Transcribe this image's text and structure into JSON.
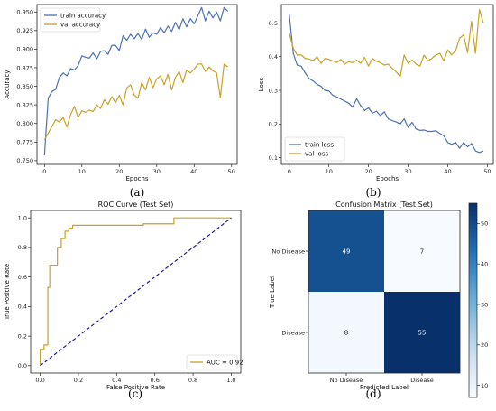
{
  "chart_data": [
    {
      "id": "a",
      "type": "line",
      "caption": "(a)",
      "title": "",
      "xlabel": "Epochs",
      "ylabel": "Accuracy",
      "xlim": [
        -2,
        51.5
      ],
      "ylim": [
        0.745,
        0.96
      ],
      "xticks": [
        0,
        10,
        20,
        30,
        40,
        50
      ],
      "yticks": [
        0.75,
        0.775,
        0.8,
        0.825,
        0.85,
        0.875,
        0.9,
        0.925,
        0.95
      ],
      "ytick_labels": [
        "0.750",
        "0.775",
        "0.800",
        "0.825",
        "0.850",
        "0.875",
        "0.900",
        "0.925",
        "0.950"
      ],
      "legend_position": "top-left",
      "series": [
        {
          "name": "train accuracy",
          "color": "#4c72b0",
          "values": [
            0.757,
            0.834,
            0.843,
            0.846,
            0.862,
            0.868,
            0.864,
            0.874,
            0.872,
            0.878,
            0.891,
            0.889,
            0.888,
            0.895,
            0.887,
            0.897,
            0.898,
            0.893,
            0.905,
            0.905,
            0.898,
            0.918,
            0.912,
            0.92,
            0.914,
            0.921,
            0.913,
            0.927,
            0.916,
            0.922,
            0.92,
            0.929,
            0.922,
            0.931,
            0.924,
            0.936,
            0.926,
            0.941,
            0.93,
            0.941,
            0.934,
            0.945,
            0.956,
            0.938,
            0.951,
            0.942,
            0.95,
            0.938,
            0.956,
            0.951
          ]
        },
        {
          "name": "val accuracy",
          "color": "#c9a227",
          "values": [
            0.778,
            0.787,
            0.796,
            0.805,
            0.802,
            0.808,
            0.795,
            0.812,
            0.823,
            0.808,
            0.817,
            0.815,
            0.818,
            0.816,
            0.825,
            0.82,
            0.832,
            0.826,
            0.836,
            0.828,
            0.838,
            0.825,
            0.848,
            0.852,
            0.838,
            0.834,
            0.855,
            0.845,
            0.862,
            0.848,
            0.86,
            0.864,
            0.852,
            0.866,
            0.845,
            0.862,
            0.87,
            0.855,
            0.872,
            0.868,
            0.873,
            0.88,
            0.88,
            0.87,
            0.876,
            0.871,
            0.868,
            0.835,
            0.88,
            0.876
          ]
        }
      ]
    },
    {
      "id": "b",
      "type": "line",
      "caption": "(b)",
      "title": "",
      "xlabel": "Epochs",
      "ylabel": "Loss",
      "xlim": [
        -2,
        51.5
      ],
      "ylim": [
        0.08,
        0.555
      ],
      "xticks": [
        0,
        10,
        20,
        30,
        40,
        50
      ],
      "yticks": [
        0.1,
        0.2,
        0.3,
        0.4,
        0.5
      ],
      "ytick_labels": [
        "0.1",
        "0.2",
        "0.3",
        "0.4",
        "0.5"
      ],
      "legend_position": "bottom-left",
      "series": [
        {
          "name": "train loss",
          "color": "#4c72b0",
          "values": [
            0.525,
            0.41,
            0.375,
            0.372,
            0.352,
            0.335,
            0.328,
            0.318,
            0.312,
            0.3,
            0.298,
            0.285,
            0.28,
            0.274,
            0.268,
            0.262,
            0.25,
            0.275,
            0.255,
            0.24,
            0.248,
            0.232,
            0.238,
            0.225,
            0.236,
            0.215,
            0.21,
            0.206,
            0.2,
            0.215,
            0.19,
            0.205,
            0.185,
            0.181,
            0.182,
            0.178,
            0.178,
            0.18,
            0.172,
            0.165,
            0.145,
            0.14,
            0.145,
            0.128,
            0.145,
            0.132,
            0.142,
            0.12,
            0.115,
            0.12
          ]
        },
        {
          "name": "val loss",
          "color": "#c9a227",
          "values": [
            0.47,
            0.425,
            0.405,
            0.405,
            0.395,
            0.393,
            0.388,
            0.4,
            0.38,
            0.395,
            0.392,
            0.387,
            0.383,
            0.392,
            0.378,
            0.385,
            0.382,
            0.39,
            0.38,
            0.398,
            0.372,
            0.395,
            0.386,
            0.382,
            0.375,
            0.378,
            0.365,
            0.355,
            0.34,
            0.405,
            0.38,
            0.39,
            0.378,
            0.372,
            0.405,
            0.388,
            0.395,
            0.405,
            0.41,
            0.388,
            0.42,
            0.405,
            0.418,
            0.455,
            0.465,
            0.412,
            0.505,
            0.41,
            0.54,
            0.5
          ]
        }
      ]
    },
    {
      "id": "c",
      "type": "line",
      "caption": "(c)",
      "title": "ROC Curve (Test Set)",
      "xlabel": "False Positive Rate",
      "ylabel": "True Positive Rate",
      "xlim": [
        -0.05,
        1.05
      ],
      "ylim": [
        -0.05,
        1.05
      ],
      "xticks": [
        0.0,
        0.2,
        0.4,
        0.6,
        0.8,
        1.0
      ],
      "yticks": [
        0.0,
        0.2,
        0.4,
        0.6,
        0.8,
        1.0
      ],
      "xtick_labels": [
        "0.0",
        "0.2",
        "0.4",
        "0.6",
        "0.8",
        "1.0"
      ],
      "ytick_labels": [
        "0.0",
        "0.2",
        "0.4",
        "0.6",
        "0.8",
        "1.0"
      ],
      "legend_position": "bottom-right",
      "series": [
        {
          "name": "AUC = 0.92",
          "color": "#c9a227",
          "points": [
            [
              0,
              0
            ],
            [
              0,
              0.11
            ],
            [
              0.02,
              0.11
            ],
            [
              0.02,
              0.14
            ],
            [
              0.04,
              0.14
            ],
            [
              0.04,
              0.53
            ],
            [
              0.05,
              0.53
            ],
            [
              0.05,
              0.68
            ],
            [
              0.09,
              0.68
            ],
            [
              0.09,
              0.8
            ],
            [
              0.11,
              0.8
            ],
            [
              0.11,
              0.86
            ],
            [
              0.13,
              0.86
            ],
            [
              0.13,
              0.91
            ],
            [
              0.15,
              0.91
            ],
            [
              0.15,
              0.93
            ],
            [
              0.17,
              0.93
            ],
            [
              0.17,
              0.95
            ],
            [
              0.54,
              0.95
            ],
            [
              0.54,
              0.96
            ],
            [
              0.7,
              0.96
            ],
            [
              0.7,
              1.0
            ],
            [
              1.0,
              1.0
            ]
          ]
        },
        {
          "name": "",
          "color": "#1f1f8c",
          "dashed": true,
          "points": [
            [
              0,
              0
            ],
            [
              1,
              1
            ]
          ]
        }
      ]
    },
    {
      "id": "d",
      "type": "heatmap",
      "caption": "(d)",
      "title": "Confusion Matrix (Test Set)",
      "xlabel": "Predicted Label",
      "ylabel": "True Label",
      "row_labels": [
        "No Disease",
        "Disease"
      ],
      "col_labels": [
        "No Disease",
        "Disease"
      ],
      "values": [
        [
          49,
          7
        ],
        [
          8,
          55
        ]
      ],
      "colorbar_ticks": [
        10,
        20,
        30,
        40,
        50
      ],
      "colorbar_range": [
        7,
        55
      ]
    }
  ]
}
